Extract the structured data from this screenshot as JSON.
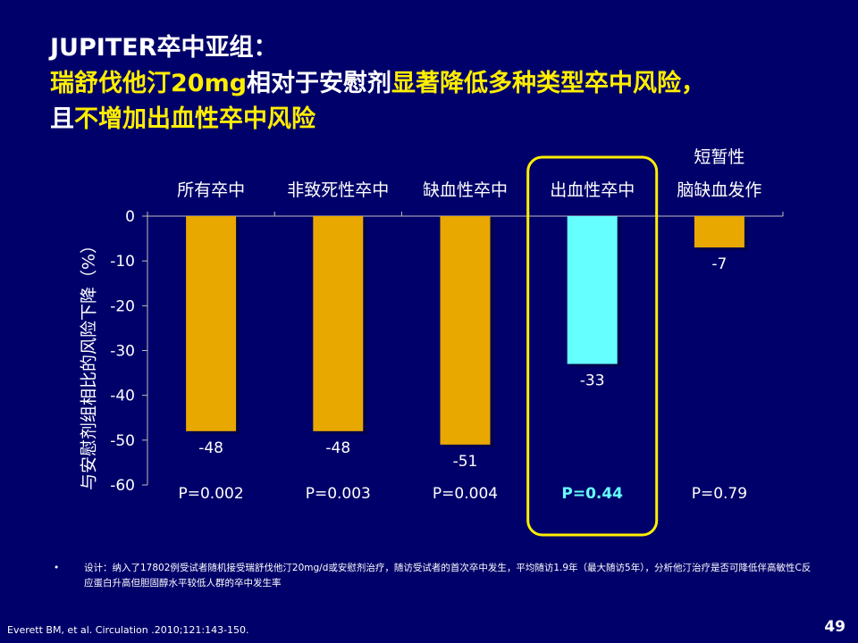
{
  "title": {
    "line1": "JUPITER卒中亚组：",
    "line2_a": "瑞舒伐他汀20mg",
    "line2_b": "相对于安慰剂",
    "line2_c": "显著降低多种类型卒中风险，",
    "line3_a": "且",
    "line3_b": "不增加出血性卒中风险"
  },
  "chart_data": {
    "type": "bar",
    "categories": [
      "所有卒中",
      "非致死性卒中",
      "缺血性卒中",
      "出血性卒中",
      "脑缺血发作"
    ],
    "category_top_line": [
      "",
      "",
      "",
      "",
      "短暂性"
    ],
    "values": [
      -48,
      -48,
      -51,
      -33,
      -7
    ],
    "value_labels": [
      "-48",
      "-48",
      "-51",
      "-33",
      "-7"
    ],
    "p_values": [
      "P=0.002",
      "P=0.003",
      "P=0.004",
      "P=0.44",
      "P=0.79"
    ],
    "highlight_index": 3,
    "ylabel": "与安慰剂组相比的风险下降（%）",
    "yticks": [
      0,
      -10,
      -20,
      -30,
      -40,
      -50,
      -60
    ],
    "ylim": [
      -60,
      0
    ],
    "colors": {
      "bar": "#e8a800",
      "highlight_bar": "#66ffff",
      "highlight_box": "#ffee00",
      "highlight_text": "#66ffff"
    }
  },
  "footnote": {
    "bullet": "•",
    "text": "设计：纳入了17802例受试者随机接受瑞舒伐他汀20mg/d或安慰剂治疗，随访受试者的首次卒中发生，平均随访1.9年（最大随访5年），分析他汀治疗是否可降低伴高敏性C反应蛋白升高但胆固醇水平较低人群的卒中发生率"
  },
  "citation": "Everett BM, et al. Circulation .2010;121:143-150.",
  "page_number": "49"
}
